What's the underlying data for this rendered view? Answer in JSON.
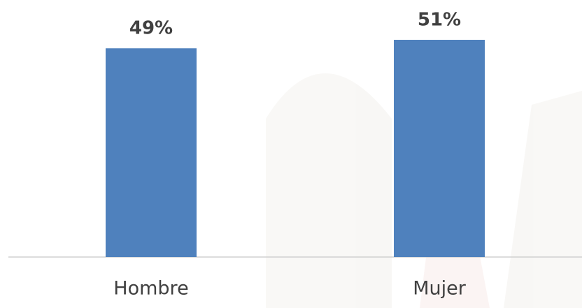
{
  "chart_data": {
    "type": "bar",
    "categories": [
      "Hombre",
      "Mujer"
    ],
    "values": [
      49,
      51
    ],
    "value_labels": [
      "49%",
      "51%"
    ],
    "color": "#4f81bd"
  }
}
